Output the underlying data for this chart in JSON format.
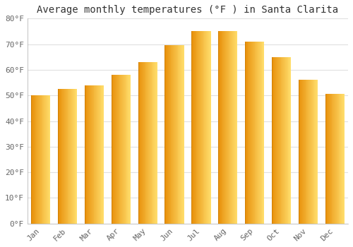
{
  "title": "Average monthly temperatures (°F ) in Santa Clarita",
  "months": [
    "Jan",
    "Feb",
    "Mar",
    "Apr",
    "May",
    "Jun",
    "Jul",
    "Aug",
    "Sep",
    "Oct",
    "Nov",
    "Dec"
  ],
  "values": [
    50,
    52.5,
    54,
    58,
    63,
    69.5,
    75,
    75,
    71,
    65,
    56,
    50.5
  ],
  "bar_color_main": "#FDB81E",
  "bar_color_left": "#E8900A",
  "bar_color_right": "#FFDD6B",
  "ylim": [
    0,
    80
  ],
  "yticks": [
    0,
    10,
    20,
    30,
    40,
    50,
    60,
    70,
    80
  ],
  "ytick_labels": [
    "0°F",
    "10°F",
    "20°F",
    "30°F",
    "40°F",
    "50°F",
    "60°F",
    "70°F",
    "80°F"
  ],
  "background_color": "#FFFFFF",
  "plot_bg_color": "#FFFFFF",
  "grid_color": "#E0E0E0",
  "title_fontsize": 10,
  "tick_fontsize": 8,
  "title_color": "#333333",
  "tick_color": "#666666"
}
